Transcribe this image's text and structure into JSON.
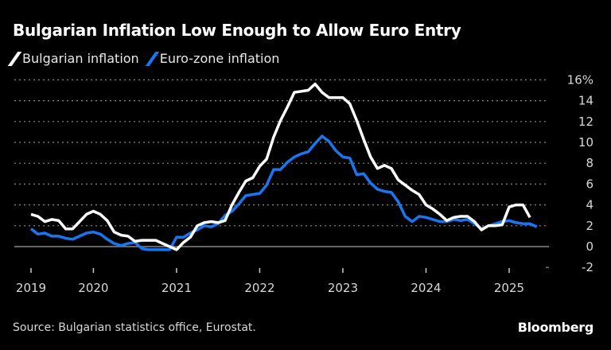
{
  "chart_data": {
    "type": "line",
    "title": "Bulgarian Inflation Low Enough to Allow Euro Entry",
    "source": "Source: Bulgarian statistics office, Eurostat.",
    "brand": "Bloomberg",
    "ylim": [
      -2,
      16
    ],
    "yticks": [
      "16%",
      "14",
      "12",
      "10",
      "8",
      "6",
      "4",
      "2",
      "0",
      "-2"
    ],
    "ytick_values": [
      16,
      14,
      12,
      10,
      8,
      6,
      4,
      2,
      0,
      -2
    ],
    "xticks": [
      "2019",
      "2020",
      "2021",
      "2022",
      "2023",
      "2024",
      "2025"
    ],
    "xtick_months": [
      "2019-04",
      "2020-01",
      "2021-01",
      "2022-01",
      "2023-01",
      "2024-01",
      "2025-01"
    ],
    "grid": true,
    "legend_position": "top-left",
    "start_month": "2019-04",
    "series": [
      {
        "name": "Bulgarian inflation",
        "color": "#ffffff",
        "values": [
          3.1,
          2.9,
          2.4,
          2.6,
          2.5,
          1.7,
          1.7,
          2.4,
          3.1,
          3.4,
          3.1,
          2.5,
          1.4,
          1.1,
          1.0,
          0.5,
          0.6,
          0.6,
          0.6,
          0.3,
          0.0,
          -0.3,
          0.4,
          0.9,
          2.0,
          2.3,
          2.4,
          2.3,
          2.5,
          4.0,
          5.2,
          6.3,
          6.6,
          7.7,
          8.4,
          10.5,
          12.1,
          13.4,
          14.8,
          14.9,
          15.0,
          15.6,
          14.8,
          14.3,
          14.3,
          14.3,
          13.7,
          12.1,
          10.3,
          8.6,
          7.5,
          7.8,
          7.5,
          6.4,
          5.9,
          5.4,
          5.0,
          4.0,
          3.6,
          3.1,
          2.5,
          2.8,
          2.9,
          2.9,
          2.4,
          1.6,
          2.0,
          2.0,
          2.1,
          3.8,
          4.0,
          4.0,
          2.8
        ]
      },
      {
        "name": "Euro-zone inflation",
        "color": "#1a76f0",
        "values": [
          1.7,
          1.2,
          1.3,
          1.0,
          1.0,
          0.8,
          0.7,
          1.0,
          1.3,
          1.4,
          1.2,
          0.7,
          0.3,
          0.1,
          0.3,
          0.4,
          -0.2,
          -0.3,
          -0.3,
          -0.3,
          -0.3,
          0.9,
          0.9,
          1.3,
          1.6,
          2.0,
          1.9,
          2.2,
          3.0,
          3.4,
          4.1,
          4.9,
          5.0,
          5.1,
          5.9,
          7.4,
          7.4,
          8.1,
          8.6,
          8.9,
          9.1,
          9.9,
          10.6,
          10.1,
          9.2,
          8.6,
          8.5,
          6.9,
          7.0,
          6.1,
          5.5,
          5.3,
          5.2,
          4.3,
          2.9,
          2.4,
          2.9,
          2.8,
          2.6,
          2.4,
          2.4,
          2.6,
          2.5,
          2.6,
          2.2,
          1.7,
          2.0,
          2.2,
          2.4,
          2.5,
          2.3,
          2.2,
          2.2,
          1.9
        ]
      }
    ]
  }
}
